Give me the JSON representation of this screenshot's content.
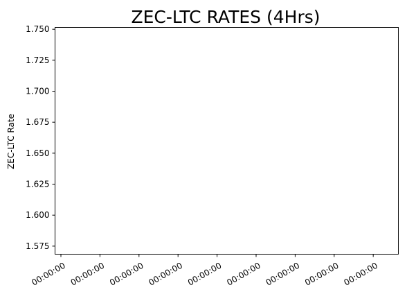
{
  "chart_data": {
    "type": "line",
    "title": "ZEC-LTC RATES (4Hrs)",
    "xlabel": "",
    "ylabel": "ZEC-LTC Rate",
    "ylim": [
      1.5685,
      1.7515
    ],
    "yticks": [
      "1.575",
      "1.600",
      "1.625",
      "1.650",
      "1.675",
      "1.700",
      "1.725",
      "1.750"
    ],
    "xticks": [
      "00:00:00",
      "00:00:00",
      "00:00:00",
      "00:00:00",
      "00:00:00",
      "00:00:00",
      "00:00:00",
      "00:00:00",
      "00:00:00"
    ],
    "series": [],
    "grid": false,
    "legend": "none"
  }
}
